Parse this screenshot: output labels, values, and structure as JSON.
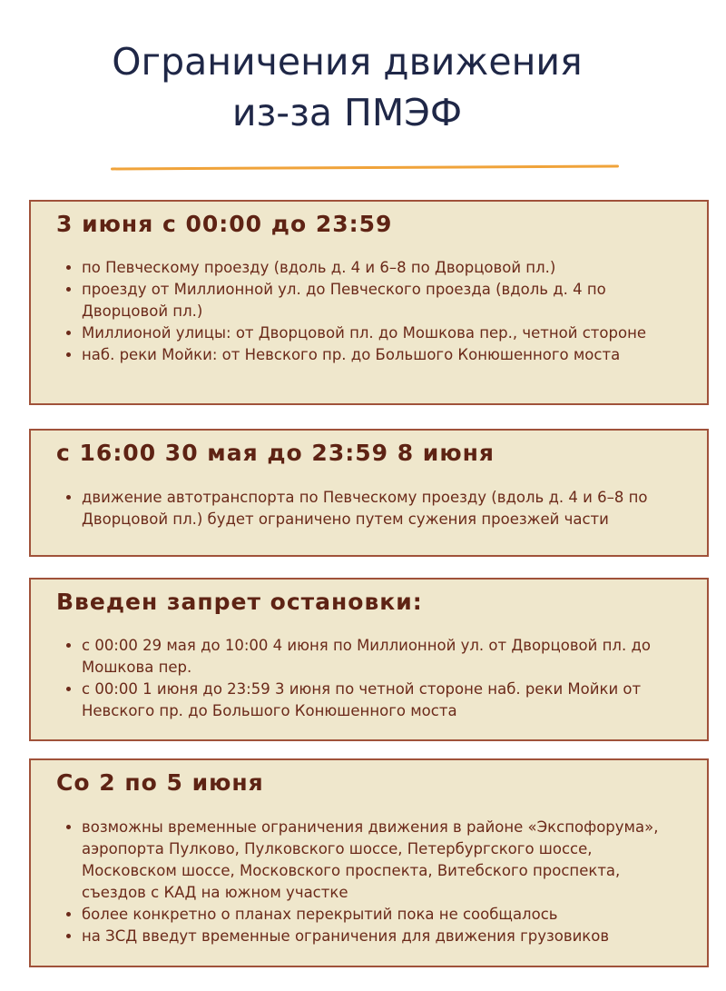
{
  "title_line1": "Ограничения движения",
  "title_line2": "из-за ПМЭФ",
  "sections": [
    {
      "heading": "3 июня с 00:00 до 23:59",
      "items": [
        "по Певческому проезду (вдоль д. 4 и 6–8 по Дворцовой пл.)",
        "проезду от Миллионной ул. до Певческого проезда (вдоль д. 4 по Дворцовой пл.)",
        "Миллионой улицы: от Дворцовой пл. до Мошкова пер., четной стороне",
        "наб. реки Мойки: от Невского пр. до Большого Конюшенного моста"
      ]
    },
    {
      "heading": "с 16:00 30 мая до 23:59 8 июня",
      "items": [
        "движение автотранспорта по Певческому проезду (вдоль д. 4 и 6–8 по Дворцовой пл.) будет ограничено путем сужения проезжей части"
      ]
    },
    {
      "heading": "Введен запрет остановки:",
      "items": [
        "с 00:00 29 мая до 10:00 4 июня по Миллионной ул. от Дворцовой пл. до Мошкова пер.",
        "с 00:00 1 июня до 23:59 3 июня по четной стороне наб. реки Мойки от Невского пр. до Большого Конюшенного моста"
      ]
    },
    {
      "heading": "Со 2 по 5 июня",
      "items": [
        "возможны временные ограничения движения  в районе «Экспофорума», аэропорта Пулково, Пулковского шоссе, Петербургского шоссе, Московском шоссе, Московского проспекта, Витебского проспекта, съездов с КАД на южном участке",
        "более конкретно о планах перекрытий пока  не сообщалось",
        "на ЗСД введут временные ограничения  для движения грузовиков"
      ]
    }
  ],
  "colors": {
    "title": "#1f2747",
    "accent_line": "#f0a33a",
    "box_bg": "#efe7cc",
    "box_border": "#a0523a",
    "heading": "#5e2314",
    "text": "#6b2a1a"
  }
}
